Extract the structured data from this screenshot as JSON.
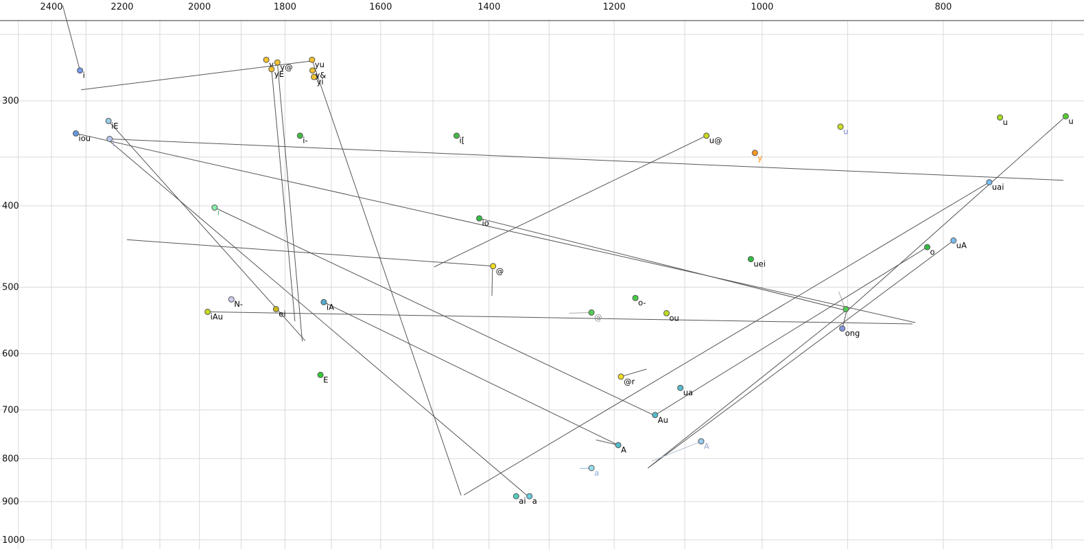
{
  "chart_data": {
    "type": "scatter",
    "title": "",
    "xlabel": "",
    "ylabel": "",
    "x_axis": {
      "scale": "log",
      "reversed": true,
      "ticks": [
        2400,
        2200,
        2000,
        1800,
        1600,
        1400,
        1200,
        1000,
        800
      ],
      "range": [
        2560,
        670
      ]
    },
    "y_axis": {
      "scale": "log",
      "reversed": true,
      "ticks": [
        300,
        400,
        500,
        600,
        700,
        800,
        900,
        1000
      ],
      "range": [
        228,
        1025
      ]
    },
    "grid": {
      "on": true,
      "color": "#d9d9d9",
      "x_lines": [
        2500,
        2400,
        2300,
        2200,
        2100,
        2000,
        1900,
        1800,
        1700,
        1600,
        1500,
        1400,
        1300,
        1200,
        1100,
        1000,
        900,
        800,
        700
      ],
      "y_lines": [
        250,
        300,
        350,
        400,
        500,
        600,
        700,
        800,
        900,
        1000
      ]
    },
    "colors": {
      "line_default": "#555555",
      "tick_label": "#111111",
      "axis_border": "#333333"
    },
    "points": [
      {
        "label": "i",
        "f2": 2317,
        "f1": 276,
        "color": "#7799ee"
      },
      {
        "label": "iE",
        "f2": 2237,
        "f1": 317,
        "color": "#99cce8"
      },
      {
        "label": "iou",
        "f2": 2329,
        "f1": 328,
        "color": "#6699dd"
      },
      {
        "label": "i",
        "f2": 2234,
        "f1": 333,
        "color": "#b8c8ee",
        "label_color": "#99aadd"
      },
      {
        "label": "y",
        "f2": 1842,
        "f1": 268,
        "color": "#f2c12e"
      },
      {
        "label": "y@",
        "f2": 1817,
        "f1": 270,
        "color": "#f2c12e"
      },
      {
        "label": "yE",
        "f2": 1830,
        "f1": 275,
        "color": "#f2c12e"
      },
      {
        "label": "yu",
        "f2": 1741,
        "f1": 268,
        "color": "#f2c12e"
      },
      {
        "label": "y&",
        "f2": 1740,
        "f1": 276,
        "color": "#f2c12e"
      },
      {
        "label": "yi",
        "f2": 1737,
        "f1": 281,
        "color": "#f2c12e"
      },
      {
        "label": "i[",
        "f2": 1457,
        "f1": 330,
        "color": "#44bb44"
      },
      {
        "label": "i-",
        "f2": 1767,
        "f1": 330,
        "color": "#44bb44"
      },
      {
        "label": "u@",
        "f2": 1071,
        "f1": 330,
        "color": "#c8d820"
      },
      {
        "label": "y",
        "f2": 1009,
        "f1": 346,
        "color": "#ff9922",
        "label_color": "#ff8800"
      },
      {
        "label": "u",
        "f2": 908,
        "f1": 322,
        "color": "#cce022",
        "label_color": "#7788cc"
      },
      {
        "label": "u",
        "f2": 746,
        "f1": 314,
        "color": "#aadd22"
      },
      {
        "label": "u",
        "f2": 688,
        "f1": 313,
        "color": "#55cc33"
      },
      {
        "label": "uai",
        "f2": 756,
        "f1": 375,
        "color": "#77bbee"
      },
      {
        "label": "i",
        "f2": 1963,
        "f1": 402,
        "color": "#88eeaa",
        "label_color": "#44bb66"
      },
      {
        "label": "io",
        "f2": 1417,
        "f1": 414,
        "color": "#33bb44"
      },
      {
        "label": "@",
        "f2": 1393,
        "f1": 472,
        "color": "#eedd22"
      },
      {
        "label": "uei",
        "f2": 1014,
        "f1": 463,
        "color": "#33bb44"
      },
      {
        "label": "o",
        "f2": 816,
        "f1": 448,
        "color": "#33bb44"
      },
      {
        "label": "uA",
        "f2": 790,
        "f1": 440,
        "color": "#77bbee"
      },
      {
        "label": "N-",
        "f2": 1923,
        "f1": 517,
        "color": "#ccccee"
      },
      {
        "label": "iA",
        "f2": 1716,
        "f1": 521,
        "color": "#55aacc"
      },
      {
        "label": "ei",
        "f2": 1820,
        "f1": 531,
        "color": "#c8b820"
      },
      {
        "label": "iAu",
        "f2": 1980,
        "f1": 535,
        "color": "#c8d820"
      },
      {
        "label": "o-",
        "f2": 1169,
        "f1": 515,
        "color": "#44cc44"
      },
      {
        "label": "@",
        "f2": 1234,
        "f1": 536,
        "color": "#55cc55",
        "label_color": "#888888"
      },
      {
        "label": "ou",
        "f2": 1125,
        "f1": 537,
        "color": "#bbdd22"
      },
      {
        "label": "ong",
        "f2": 906,
        "f1": 560,
        "color": "#8899dd"
      },
      {
        "label": "",
        "f2": 902,
        "f1": 531,
        "color": "#55cc55"
      },
      {
        "label": "E",
        "f2": 1723,
        "f1": 636,
        "color": "#33cc33"
      },
      {
        "label": "@r",
        "f2": 1190,
        "f1": 639,
        "color": "#eedd22"
      },
      {
        "label": "ua",
        "f2": 1106,
        "f1": 659,
        "color": "#55bbcc"
      },
      {
        "label": "Au",
        "f2": 1141,
        "f1": 710,
        "color": "#55bbcc"
      },
      {
        "label": "A",
        "f2": 1194,
        "f1": 771,
        "color": "#55bbcc"
      },
      {
        "label": "A",
        "f2": 1078,
        "f1": 763,
        "color": "#99ccee",
        "label_color": "#99aacc"
      },
      {
        "label": "a",
        "f2": 1234,
        "f1": 821,
        "color": "#99ddee",
        "label_color": "#88aadd"
      },
      {
        "label": "ai",
        "f2": 1354,
        "f1": 887,
        "color": "#55ccbb"
      },
      {
        "label": "a",
        "f2": 1332,
        "f1": 887,
        "color": "#66ccdd"
      }
    ],
    "segments": [
      {
        "from": [
          2367,
          231
        ],
        "to": [
          2317,
          276
        ]
      },
      {
        "from": [
          2314,
          291
        ],
        "to": [
          1744,
          269
        ]
      },
      {
        "from": [
          2237,
          317
        ],
        "to": [
          1756,
          579
        ]
      },
      {
        "from": [
          2329,
          328
        ],
        "to": [
          828,
          551
        ]
      },
      {
        "from": [
          2234,
          333
        ],
        "to": [
          690,
          373
        ]
      },
      {
        "from": [
          1817,
          270
        ],
        "to": [
          1762,
          580
        ]
      },
      {
        "from": [
          1830,
          275
        ],
        "to": [
          1778,
          549
        ]
      },
      {
        "from": [
          1741,
          268
        ],
        "to": [
          1449,
          885
        ]
      },
      {
        "from": [
          756,
          375
        ],
        "to": [
          1444,
          884
        ]
      },
      {
        "from": [
          1071,
          330
        ],
        "to": [
          1498,
          473
        ]
      },
      {
        "from": [
          2187,
          439
        ],
        "to": [
          1393,
          472
        ]
      },
      {
        "from": [
          1394,
          475
        ],
        "to": [
          1395,
          512
        ]
      },
      {
        "from": [
          1417,
          414
        ],
        "to": [
          902,
          533
        ]
      },
      {
        "from": [
          688,
          313
        ],
        "to": [
          901,
          534
        ]
      },
      {
        "from": [
          790,
          440
        ],
        "to": [
          1151,
          821
        ]
      },
      {
        "from": [
          1190,
          639
        ],
        "to": [
          1153,
          626
        ]
      },
      {
        "from": [
          902,
          533
        ],
        "to": [
          1151,
          821
        ]
      },
      {
        "from": [
          910,
          506
        ],
        "to": [
          902,
          533
        ],
        "color": "#aaaaaa"
      },
      {
        "from": [
          2234,
          335
        ],
        "to": [
          1336,
          885
        ]
      },
      {
        "from": [
          1963,
          402
        ],
        "to": [
          1143,
          710
        ]
      },
      {
        "from": [
          1980,
          535
        ],
        "to": [
          831,
          553
        ]
      },
      {
        "from": [
          1716,
          521
        ],
        "to": [
          1194,
          771
        ]
      },
      {
        "from": [
          906,
          560
        ],
        "to": [
          901,
          533
        ]
      },
      {
        "from": [
          1141,
          710
        ],
        "to": [
          816,
          448
        ]
      },
      {
        "from": [
          1227,
          760
        ],
        "to": [
          1194,
          771
        ]
      },
      {
        "from": [
          1146,
          806
        ],
        "to": [
          1078,
          763
        ],
        "color": "#aabbcc"
      },
      {
        "from": [
          1252,
          822
        ],
        "to": [
          1234,
          821
        ],
        "color": "#88bbdd"
      },
      {
        "from": [
          1268,
          537
        ],
        "to": [
          1234,
          536
        ],
        "color": "#aaaaaa"
      }
    ]
  }
}
